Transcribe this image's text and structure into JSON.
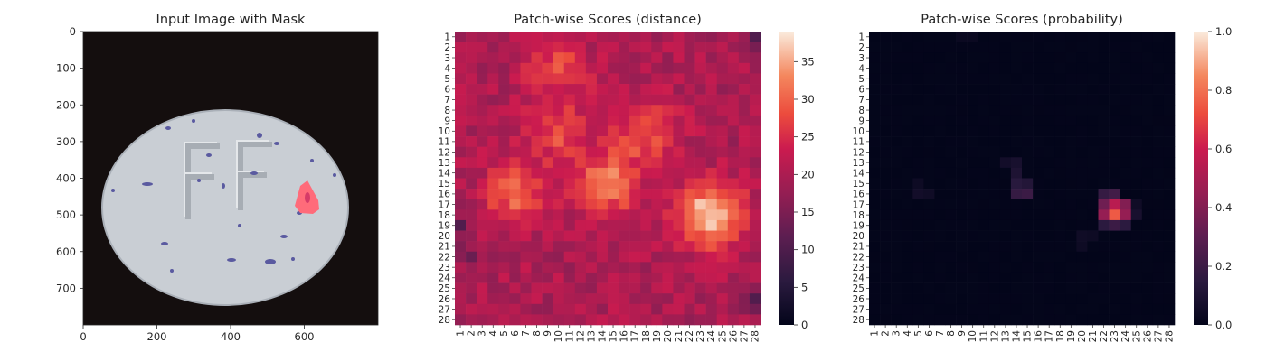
{
  "figure": {
    "background": "#ffffff"
  },
  "chart_data": [
    {
      "type": "image",
      "title": "Input Image with Mask",
      "xticks": [
        0,
        200,
        400,
        600
      ],
      "yticks": [
        0,
        100,
        200,
        300,
        400,
        500,
        600,
        700
      ],
      "xlim": [
        0,
        800
      ],
      "ylim": [
        800,
        0
      ],
      "description_colors": {
        "background": "#140e0e",
        "pill": "#c9ced4",
        "speckle": "#5a5aa0",
        "mask": "#ff6b7a"
      }
    },
    {
      "type": "heatmap",
      "title": "Patch-wise Scores (distance)",
      "grid": 28,
      "xtick_labels": [
        "1",
        "2",
        "3",
        "4",
        "5",
        "6",
        "7",
        "8",
        "9",
        "10",
        "11",
        "12",
        "13",
        "14",
        "15",
        "16",
        "17",
        "18",
        "19",
        "20",
        "21",
        "22",
        "23",
        "24",
        "25",
        "26",
        "27",
        "28"
      ],
      "ytick_labels": [
        "1",
        "2",
        "3",
        "4",
        "5",
        "6",
        "7",
        "8",
        "9",
        "10",
        "11",
        "12",
        "13",
        "14",
        "15",
        "16",
        "17",
        "18",
        "19",
        "20",
        "21",
        "22",
        "23",
        "24",
        "25",
        "26",
        "27",
        "28"
      ],
      "colorbar": {
        "min": 0,
        "max": 39,
        "ticks": [
          0,
          5,
          10,
          15,
          20,
          25,
          30,
          35
        ]
      },
      "base_value": 20,
      "hotspots": [
        {
          "row": 18,
          "col": 24,
          "value": 39
        },
        {
          "row": 15,
          "col": 14.5,
          "value": 33
        },
        {
          "row": 16,
          "col": 6,
          "value": 30
        },
        {
          "row": 10,
          "col": 18,
          "value": 29
        },
        {
          "row": 10,
          "col": 10,
          "value": 28
        },
        {
          "row": 4,
          "col": 10,
          "value": 27
        }
      ],
      "low_spots": [
        {
          "row": 19,
          "col": 1,
          "value": 12
        },
        {
          "row": 26,
          "col": 28,
          "value": 11
        },
        {
          "row": 1,
          "col": 28,
          "value": 13
        },
        {
          "row": 22,
          "col": 2,
          "value": 14
        }
      ]
    },
    {
      "type": "heatmap",
      "title": "Patch-wise Scores (probability)",
      "grid": 28,
      "xtick_labels": [
        "1",
        "2",
        "3",
        "4",
        "5",
        "6",
        "7",
        "8",
        "9",
        "10",
        "11",
        "12",
        "13",
        "14",
        "15",
        "16",
        "17",
        "18",
        "19",
        "20",
        "21",
        "22",
        "23",
        "24",
        "25",
        "26",
        "27",
        "28"
      ],
      "ytick_labels": [
        "1",
        "2",
        "3",
        "4",
        "5",
        "6",
        "7",
        "8",
        "9",
        "10",
        "11",
        "12",
        "13",
        "14",
        "15",
        "16",
        "17",
        "18",
        "19",
        "20",
        "21",
        "22",
        "23",
        "24",
        "25",
        "26",
        "27",
        "28"
      ],
      "colorbar": {
        "min": 0,
        "max": 1,
        "ticks": [
          "0.0",
          "0.2",
          "0.4",
          "0.6",
          "0.8",
          "1.0"
        ]
      },
      "cells": [
        {
          "row": 17,
          "col": 22,
          "value": 0.35
        },
        {
          "row": 17,
          "col": 23,
          "value": 0.55
        },
        {
          "row": 17,
          "col": 24,
          "value": 0.4
        },
        {
          "row": 18,
          "col": 22,
          "value": 0.45
        },
        {
          "row": 18,
          "col": 23,
          "value": 0.75
        },
        {
          "row": 18,
          "col": 24,
          "value": 0.45
        },
        {
          "row": 16,
          "col": 22,
          "value": 0.18
        },
        {
          "row": 16,
          "col": 23,
          "value": 0.22
        },
        {
          "row": 19,
          "col": 22,
          "value": 0.15
        },
        {
          "row": 19,
          "col": 23,
          "value": 0.2
        },
        {
          "row": 19,
          "col": 24,
          "value": 0.15
        },
        {
          "row": 16,
          "col": 14,
          "value": 0.18
        },
        {
          "row": 16,
          "col": 15,
          "value": 0.2
        },
        {
          "row": 15,
          "col": 14,
          "value": 0.14
        },
        {
          "row": 15,
          "col": 15,
          "value": 0.12
        },
        {
          "row": 14,
          "col": 14,
          "value": 0.1
        },
        {
          "row": 13,
          "col": 14,
          "value": 0.08
        },
        {
          "row": 13,
          "col": 13,
          "value": 0.06
        },
        {
          "row": 16,
          "col": 5,
          "value": 0.06
        },
        {
          "row": 16,
          "col": 6,
          "value": 0.05
        },
        {
          "row": 15,
          "col": 5,
          "value": 0.04
        },
        {
          "row": 20,
          "col": 20,
          "value": 0.05
        },
        {
          "row": 21,
          "col": 20,
          "value": 0.04
        },
        {
          "row": 20,
          "col": 21,
          "value": 0.04
        },
        {
          "row": 18,
          "col": 25,
          "value": 0.08
        },
        {
          "row": 17,
          "col": 25,
          "value": 0.05
        },
        {
          "row": 1,
          "col": 9,
          "value": 0.03
        },
        {
          "row": 1,
          "col": 10,
          "value": 0.03
        }
      ]
    }
  ]
}
